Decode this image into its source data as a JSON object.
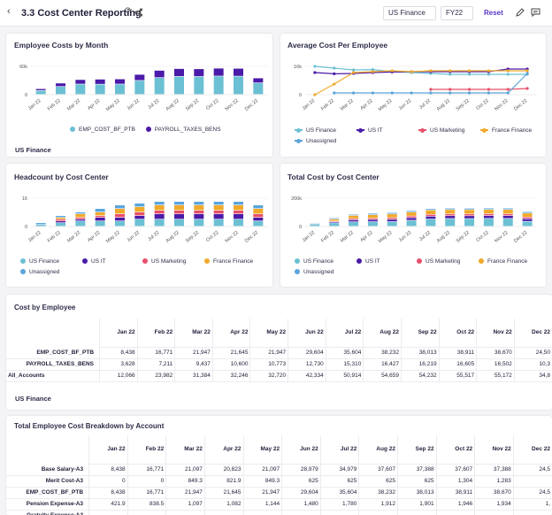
{
  "header": {
    "title": "3.3 Cost Center Reporting",
    "filter1": "US Finance",
    "filter2": "FY22",
    "reset": "Reset"
  },
  "months": [
    "Jan 22",
    "Feb 22",
    "Mar 22",
    "Apr 22",
    "May 22",
    "Jun 22",
    "Jul 22",
    "Aug 22",
    "Sep 22",
    "Oct 22",
    "Nov 22",
    "Dec 22"
  ],
  "colors": {
    "teal": "#6cc0d4",
    "purple": "#4a1aa8",
    "red": "#e8506a",
    "orange": "#f0a92a",
    "blue": "#5aa5dc"
  },
  "chart_data": [
    {
      "type": "bar",
      "title": "Employee Costs by Month",
      "ylim": [
        0,
        60000
      ],
      "yticks": [
        "60k",
        "0"
      ],
      "footer": "US Finance",
      "series": [
        {
          "name": "EMP_COST_BF_PTB",
          "values": [
            8438,
            16771,
            21947,
            21645,
            21947,
            29604,
            35604,
            38232,
            38013,
            38911,
            38670,
            24500
          ]
        },
        {
          "name": "PAYROLL_TAXES_BENS",
          "values": [
            3628,
            7211,
            9437,
            10600,
            10773,
            12730,
            15310,
            16427,
            16219,
            16605,
            16502,
            10300
          ]
        }
      ]
    },
    {
      "type": "line",
      "title": "Average Cost Per Employee",
      "ylim": [
        0,
        16000
      ],
      "yticks": [
        "16k",
        "0"
      ],
      "series": [
        {
          "name": "US Finance",
          "values": [
            16000,
            15000,
            14000,
            14200,
            13000,
            12500,
            12000,
            11500,
            11500,
            11500,
            11500,
            11500
          ]
        },
        {
          "name": "US IT",
          "values": [
            12500,
            11800,
            12000,
            12500,
            12800,
            13000,
            13000,
            13000,
            13000,
            13000,
            14500,
            14500
          ]
        },
        {
          "name": "US Marketing",
          "values": [
            null,
            null,
            null,
            null,
            null,
            null,
            3000,
            3000,
            3000,
            3000,
            3000,
            3500
          ]
        },
        {
          "name": "France Finance",
          "values": [
            0,
            6000,
            12500,
            13000,
            13500,
            13000,
            13500,
            13500,
            13500,
            13500,
            13500,
            13500
          ]
        },
        {
          "name": "Unassigned",
          "values": [
            null,
            1000,
            1000,
            1000,
            1000,
            1000,
            1000,
            1000,
            1000,
            1000,
            1000,
            12000
          ]
        }
      ]
    },
    {
      "type": "bar",
      "title": "Headcount by Cost Center",
      "ylim": [
        0,
        16
      ],
      "yticks": [
        "16",
        "0"
      ],
      "series": [
        {
          "name": "US Finance",
          "values": [
            1,
            2,
            3,
            3,
            3,
            4,
            4,
            4,
            4,
            4,
            4,
            3
          ]
        },
        {
          "name": "US IT",
          "values": [
            0,
            1,
            1,
            2,
            2,
            2,
            3,
            3,
            3,
            3,
            3,
            2
          ]
        },
        {
          "name": "US Marketing",
          "values": [
            0,
            1,
            1,
            1,
            2,
            2,
            2,
            2,
            2,
            2,
            2,
            2
          ]
        },
        {
          "name": "France Finance",
          "values": [
            0,
            1,
            2,
            2,
            3,
            3,
            3,
            3,
            3,
            3,
            3,
            3
          ]
        },
        {
          "name": "Unassigned",
          "values": [
            1,
            1,
            1,
            2,
            2,
            2,
            2,
            2,
            2,
            2,
            2,
            2
          ]
        }
      ]
    },
    {
      "type": "bar",
      "title": "Total Cost by Cost Center",
      "ylim": [
        0,
        200000
      ],
      "yticks": [
        "200k",
        "0"
      ],
      "series": [
        {
          "name": "US Finance",
          "values": [
            12066,
            23982,
            31384,
            32246,
            32720,
            42334,
            50914,
            54659,
            54232,
            55517,
            55172,
            34800
          ]
        },
        {
          "name": "US IT",
          "values": [
            0,
            8000,
            14000,
            15000,
            16000,
            18000,
            20000,
            20000,
            20000,
            20000,
            20000,
            18000
          ]
        },
        {
          "name": "US Marketing",
          "values": [
            0,
            5000,
            9000,
            10000,
            12000,
            12000,
            13000,
            13000,
            13000,
            13000,
            13000,
            12000
          ]
        },
        {
          "name": "France Finance",
          "values": [
            0,
            14000,
            22000,
            24000,
            26000,
            28000,
            30000,
            30000,
            30000,
            30000,
            30000,
            28000
          ]
        },
        {
          "name": "Unassigned",
          "values": [
            8000,
            8000,
            8000,
            10000,
            10000,
            10000,
            10000,
            10000,
            10000,
            10000,
            10000,
            10000
          ]
        }
      ]
    }
  ],
  "tableA": {
    "title": "Cost by Employee",
    "footer": "US Finance",
    "rows": [
      {
        "label": "EMP_COST_BF_PTB",
        "cells": [
          "8,438",
          "16,771",
          "21,947",
          "21,645",
          "21,947",
          "29,604",
          "35,604",
          "38,232",
          "38,013",
          "38,911",
          "38,670",
          "24,50"
        ]
      },
      {
        "label": "PAYROLL_TAXES_BENS",
        "cells": [
          "3,628",
          "7,211",
          "9,437",
          "10,600",
          "10,773",
          "12,730",
          "15,310",
          "16,427",
          "16,219",
          "16,605",
          "16,502",
          "10,3"
        ]
      },
      {
        "label": "All_Accounts",
        "cells": [
          "12,066",
          "23,982",
          "31,384",
          "32,246",
          "32,720",
          "42,334",
          "50,914",
          "54,659",
          "54,232",
          "55,517",
          "55,172",
          "34,8"
        ]
      }
    ]
  },
  "tableB": {
    "title": "Total Employee Cost Breakdown by Account",
    "rows": [
      {
        "label": "Base Salary-A3",
        "cells": [
          "8,438",
          "16,771",
          "21,097",
          "20,823",
          "21,097",
          "28,979",
          "34,979",
          "37,607",
          "37,388",
          "37,607",
          "37,388",
          "24,5"
        ]
      },
      {
        "label": "Merit Cost-A3",
        "cells": [
          "0",
          "0",
          "849.3",
          "821.9",
          "849.3",
          "625",
          "625",
          "625",
          "625",
          "1,304",
          "1,283",
          ""
        ]
      },
      {
        "label": "EMP_COST_BF_PTB",
        "cells": [
          "8,438",
          "16,771",
          "21,947",
          "21,645",
          "21,947",
          "29,604",
          "35,604",
          "38,232",
          "38,013",
          "38,911",
          "38,670",
          "24,5"
        ]
      },
      {
        "label": "Pension Expense-A3",
        "cells": [
          "421.9",
          "838.5",
          "1,097",
          "1,082",
          "1,144",
          "1,480",
          "1,780",
          "1,912",
          "1,901",
          "1,946",
          "1,934",
          "1,"
        ]
      },
      {
        "label": "Gratuity Expense-A3",
        "cells": [
          "",
          "",
          "",
          "",
          "",
          "",
          "",
          "",
          "",
          "",
          "",
          ""
        ]
      }
    ]
  }
}
